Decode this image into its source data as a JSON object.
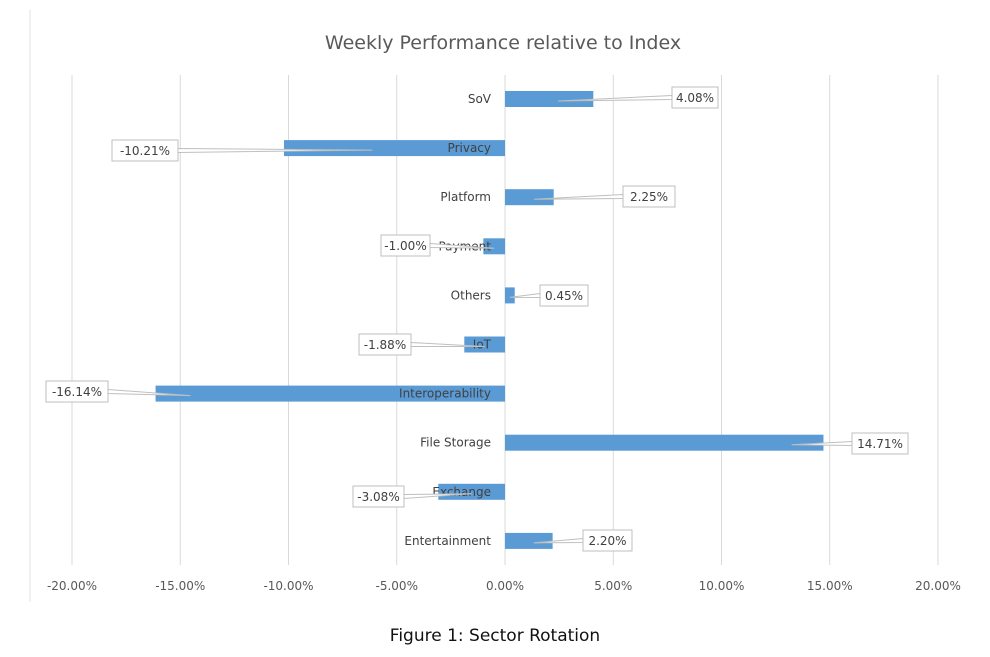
{
  "chart_data": {
    "type": "bar",
    "orientation": "horizontal",
    "title": "Weekly Performance relative to Index",
    "categories": [
      "SoV",
      "Privacy",
      "Platform",
      "Payment",
      "Others",
      "IoT",
      "Interoperability",
      "File Storage",
      "Exchange",
      "Entertainment"
    ],
    "values": [
      4.08,
      -10.21,
      2.25,
      -1.0,
      0.45,
      -1.88,
      -16.14,
      14.71,
      -3.08,
      2.2
    ],
    "data_labels": [
      "4.08%",
      "-10.21%",
      "2.25%",
      "-1.00%",
      "0.45%",
      "-1.88%",
      "-16.14%",
      "14.71%",
      "-3.08%",
      "2.20%"
    ],
    "xlim": [
      -20,
      20
    ],
    "x_ticks": [
      "-20.00%",
      "-15.00%",
      "-10.00%",
      "-5.00%",
      "0.00%",
      "5.00%",
      "10.00%",
      "15.00%",
      "20.00%"
    ],
    "xlabel": "",
    "ylabel": "",
    "grid": true,
    "bar_color": "#5b9bd5"
  },
  "caption": "Figure 1: Sector Rotation"
}
